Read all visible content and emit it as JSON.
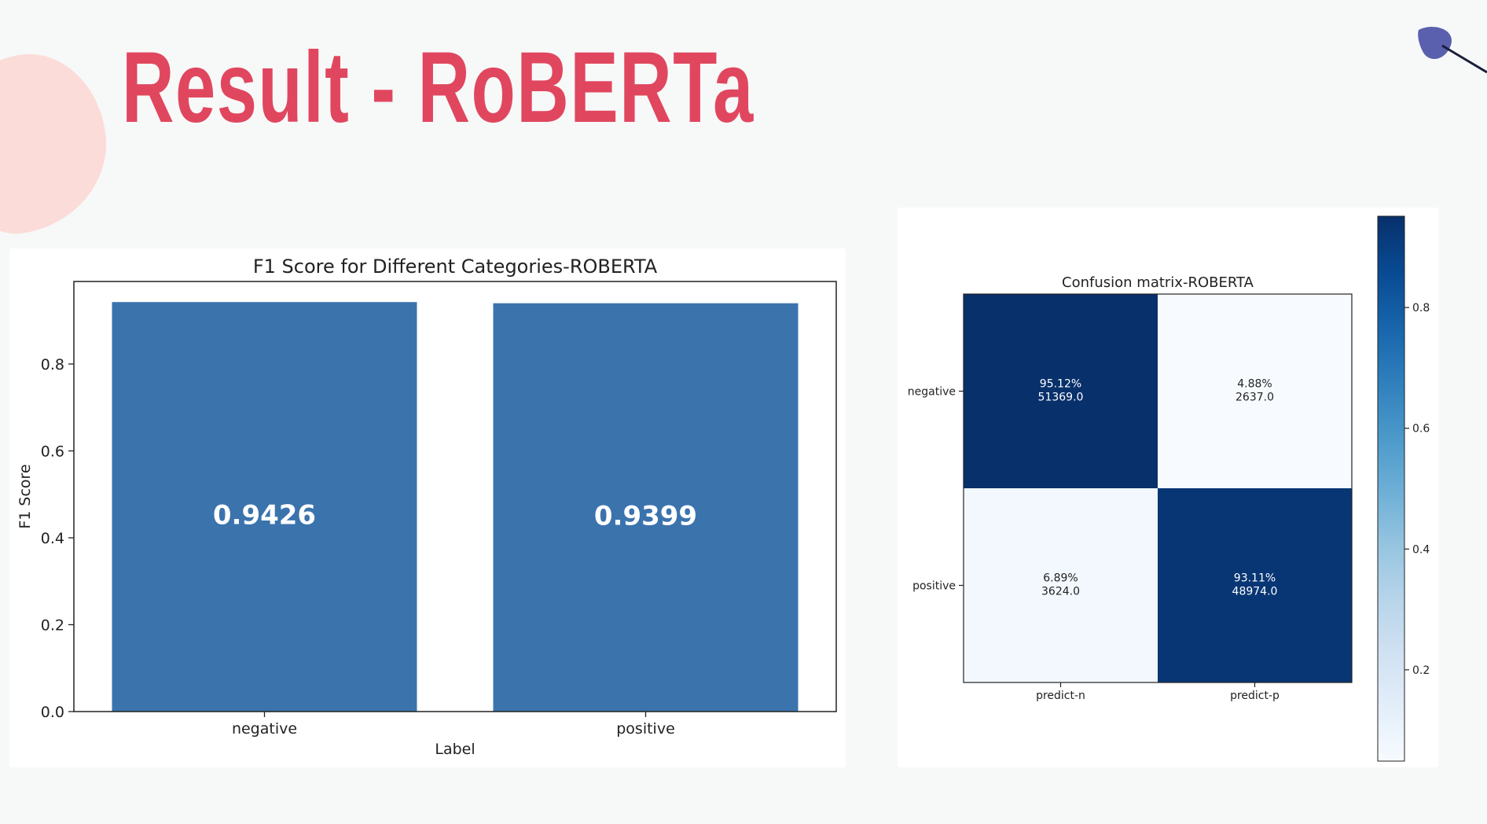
{
  "slide": {
    "title": "Result - RoBERTa",
    "colors": {
      "title": "#e0475f",
      "blob": "#fbdcd8",
      "leaf": "#5a5fae",
      "background": "#f7f8f8"
    }
  },
  "chart_data": [
    {
      "type": "bar",
      "title": "F1 Score for Different Categories-ROBERTA",
      "xlabel": "Label",
      "ylabel": "F1 Score",
      "categories": [
        "negative",
        "positive"
      ],
      "values": [
        0.9426,
        0.9399
      ],
      "data_labels": [
        "0.9426",
        "0.9399"
      ],
      "ylim": [
        0,
        0.99
      ],
      "yticks": [
        0.0,
        0.2,
        0.4,
        0.6,
        0.8
      ],
      "ytick_labels": [
        "0.0",
        "0.2",
        "0.4",
        "0.6",
        "0.8"
      ],
      "bar_color": "#3b73ad",
      "label_color": "#ffffff",
      "grid": false
    },
    {
      "type": "heatmap",
      "title": "Confusion matrix-ROBERTA",
      "rows": [
        "negative",
        "positive"
      ],
      "columns": [
        "predict-n",
        "predict-p"
      ],
      "values": [
        [
          0.9512,
          0.0488
        ],
        [
          0.0689,
          0.9311
        ]
      ],
      "counts": [
        [
          51369.0,
          2637.0
        ],
        [
          3624.0,
          48974.0
        ]
      ],
      "cell_labels": [
        [
          "95.12%",
          "4.88%"
        ],
        [
          "6.89%",
          "93.11%"
        ]
      ],
      "count_labels": [
        [
          "51369.0",
          "2637.0"
        ],
        [
          "3624.0",
          "48974.0"
        ]
      ],
      "colorbar": {
        "range": [
          0.0488,
          0.9512
        ],
        "ticks": [
          0.2,
          0.4,
          0.6,
          0.8
        ],
        "tick_labels": [
          "0.2",
          "0.4",
          "0.6",
          "0.8"
        ],
        "colormap": "Blues"
      }
    }
  ]
}
